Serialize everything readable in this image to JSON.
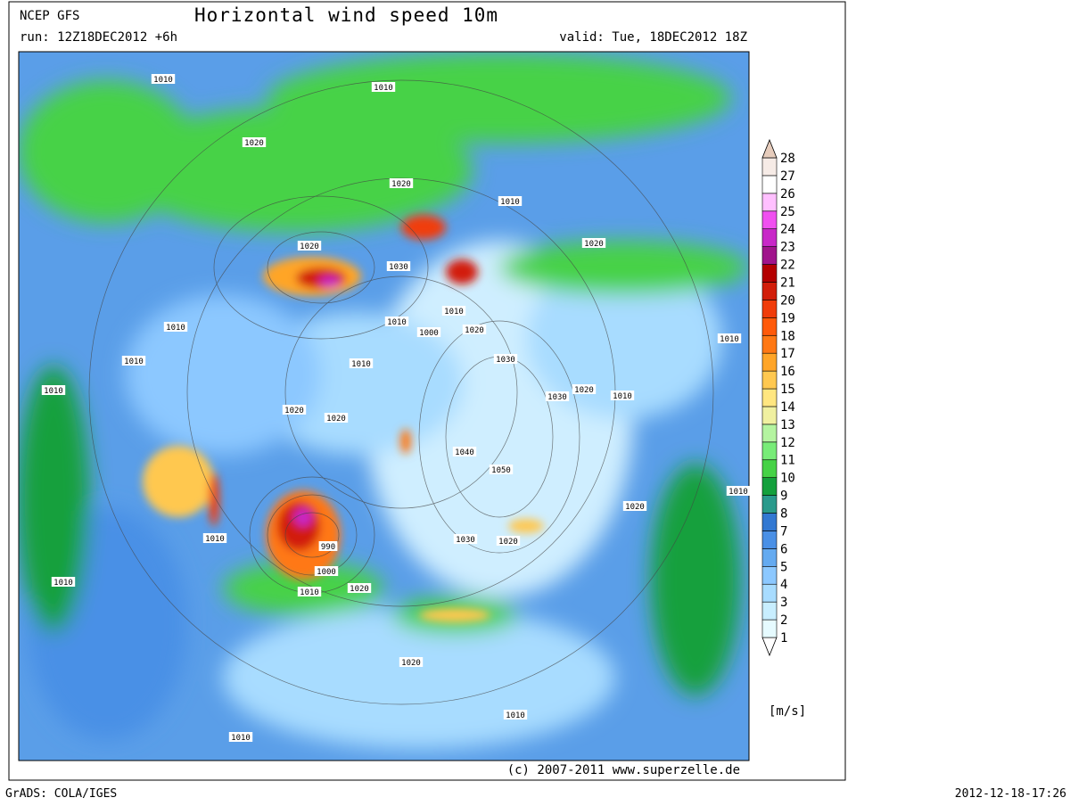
{
  "header": {
    "left": "NCEP GFS",
    "title": "Horizontal wind speed 10m",
    "run": "run: 12Z18DEC2012 +6h",
    "valid": "valid: Tue, 18DEC2012 18Z"
  },
  "colorbar": {
    "levels": [
      1,
      2,
      3,
      4,
      5,
      6,
      7,
      8,
      9,
      10,
      11,
      12,
      13,
      14,
      15,
      16,
      17,
      18,
      19,
      20,
      21,
      22,
      23,
      24,
      25,
      26,
      27,
      28
    ],
    "colors": [
      "#ffffff",
      "#e6fbff",
      "#c8eeff",
      "#a8dcff",
      "#8cc8ff",
      "#64aaf0",
      "#4a90e6",
      "#3278d2",
      "#2a9a8c",
      "#14a03c",
      "#46d246",
      "#78ec78",
      "#b4f4a0",
      "#f0f0a0",
      "#ffe680",
      "#ffc850",
      "#ffa528",
      "#ff7814",
      "#ff5a0a",
      "#f03c0a",
      "#d21e0a",
      "#b40000",
      "#a0148c",
      "#c828c8",
      "#f050f0",
      "#ffc0ff",
      "#ffffff",
      "#f6ebe6",
      "#e6ccbc"
    ],
    "unit": "[m/s]"
  },
  "isobars": [
    "1010",
    "1010",
    "1020",
    "1020",
    "1010",
    "1020",
    "1030",
    "1020",
    "1010",
    "1010",
    "1000",
    "1020",
    "1010",
    "1010",
    "1010",
    "1030",
    "1010",
    "1030",
    "1020",
    "1010",
    "1010",
    "1020",
    "1020",
    "1040",
    "1050",
    "1010",
    "1020",
    "1010",
    "990",
    "1030",
    "1020",
    "1000",
    "1010",
    "1010",
    "1020",
    "1020",
    "1010",
    "1010"
  ],
  "copyright": "(c) 2007-2011 www.superzelle.de",
  "footer": {
    "left": "GrADS: COLA/IGES",
    "right": "2012-12-18-17:26"
  }
}
